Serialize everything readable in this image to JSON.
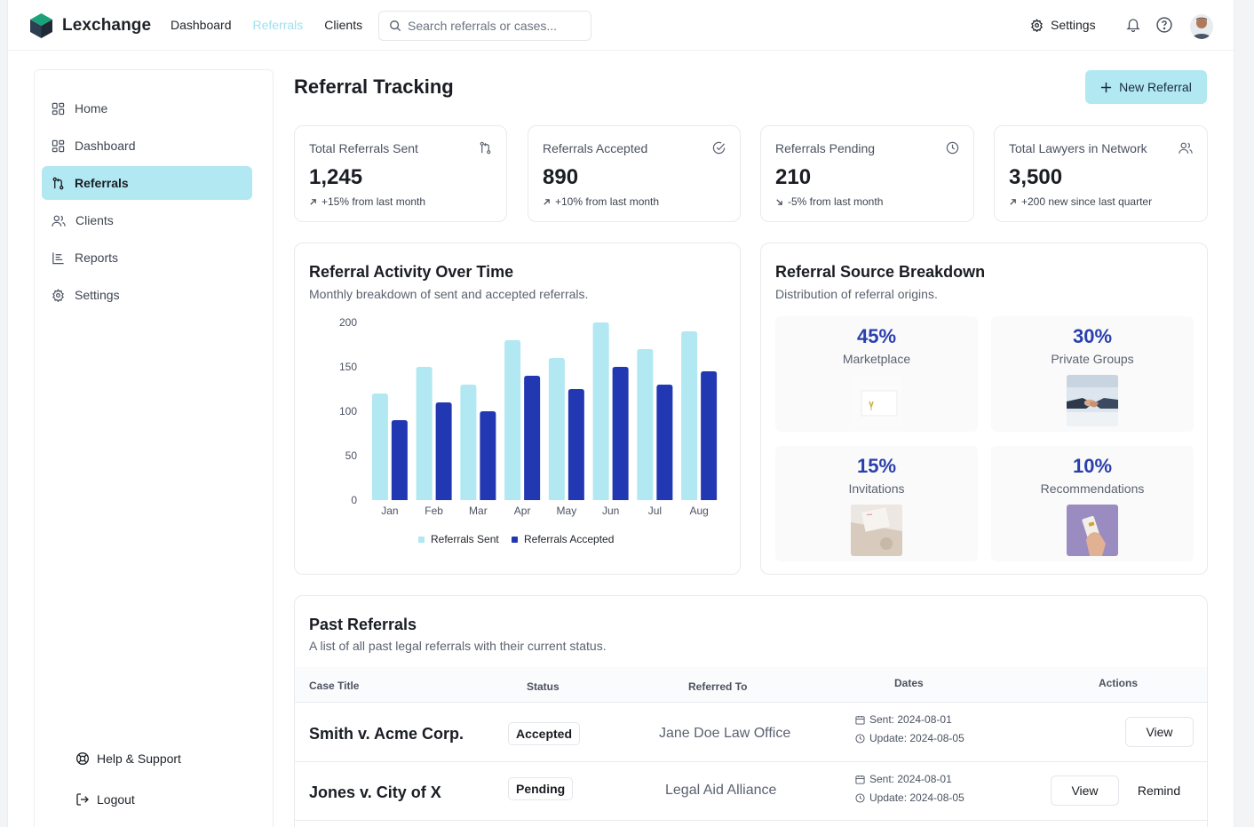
{
  "app": {
    "name": "Lexchange"
  },
  "topnav": {
    "items": [
      "Dashboard",
      "Referrals",
      "Clients"
    ],
    "active": "Referrals",
    "search_placeholder": "Search referrals or cases...",
    "settings_label": "Settings"
  },
  "sidebar": {
    "items": [
      {
        "label": "Home",
        "icon": "grid-icon"
      },
      {
        "label": "Dashboard",
        "icon": "grid-icon"
      },
      {
        "label": "Referrals",
        "icon": "git-pull-icon"
      },
      {
        "label": "Clients",
        "icon": "users-icon"
      },
      {
        "label": "Reports",
        "icon": "report-icon"
      },
      {
        "label": "Settings",
        "icon": "gear-icon"
      }
    ],
    "active": "Referrals",
    "help_label": "Help & Support",
    "logout_label": "Logout"
  },
  "page": {
    "title": "Referral Tracking",
    "new_button": "New Referral"
  },
  "stats": [
    {
      "label": "Total Referrals Sent",
      "value": "1,245",
      "change": "+15% from last month",
      "icon": "git-pull-icon",
      "trend": "up"
    },
    {
      "label": "Referrals Accepted",
      "value": "890",
      "change": "+10% from last month",
      "icon": "check-circle-icon",
      "trend": "up"
    },
    {
      "label": "Referrals Pending",
      "value": "210",
      "change": "-5% from last month",
      "icon": "clock-icon",
      "trend": "down"
    },
    {
      "label": "Total Lawyers in Network",
      "value": "3,500",
      "change": "+200 new since last quarter",
      "icon": "users-icon",
      "trend": "up"
    }
  ],
  "activity": {
    "title": "Referral Activity Over Time",
    "subtitle": "Monthly breakdown of sent and accepted referrals."
  },
  "chart_data": {
    "type": "bar",
    "title": "Referral Activity Over Time",
    "categories": [
      "Jan",
      "Feb",
      "Mar",
      "Apr",
      "May",
      "Jun",
      "Jul",
      "Aug"
    ],
    "series": [
      {
        "name": "Referrals Sent",
        "values": [
          120,
          150,
          130,
          180,
          160,
          200,
          170,
          190
        ],
        "color": "#b1e8f2"
      },
      {
        "name": "Referrals Accepted",
        "values": [
          90,
          110,
          100,
          140,
          125,
          150,
          130,
          145
        ],
        "color": "#2238b2"
      }
    ],
    "yticks": [
      0,
      50,
      100,
      150,
      200
    ],
    "ylim": [
      0,
      200
    ],
    "legend": "bottom"
  },
  "sources": {
    "title": "Referral Source Breakdown",
    "subtitle": "Distribution of referral origins.",
    "items": [
      {
        "pct": "45%",
        "name": "Marketplace"
      },
      {
        "pct": "30%",
        "name": "Private Groups"
      },
      {
        "pct": "15%",
        "name": "Invitations"
      },
      {
        "pct": "10%",
        "name": "Recommendations"
      }
    ]
  },
  "past": {
    "title": "Past Referrals",
    "subtitle": "A list of all past legal referrals with their current status.",
    "columns": [
      "Case Title",
      "Status",
      "Referred To",
      "Dates",
      "Actions"
    ],
    "rows": [
      {
        "case": "Smith v. Acme Corp.",
        "status": "Accepted",
        "referred_to": "Jane Doe Law Office",
        "sent": "Sent: 2024-08-01",
        "update": "Update: 2024-08-05",
        "actions": [
          "View"
        ]
      },
      {
        "case": "Jones v. City of X",
        "status": "Pending",
        "referred_to": "Legal Aid Alliance",
        "sent": "Sent: 2024-08-01",
        "update": "Update: 2024-08-05",
        "actions": [
          "View",
          "Remind"
        ]
      }
    ]
  }
}
